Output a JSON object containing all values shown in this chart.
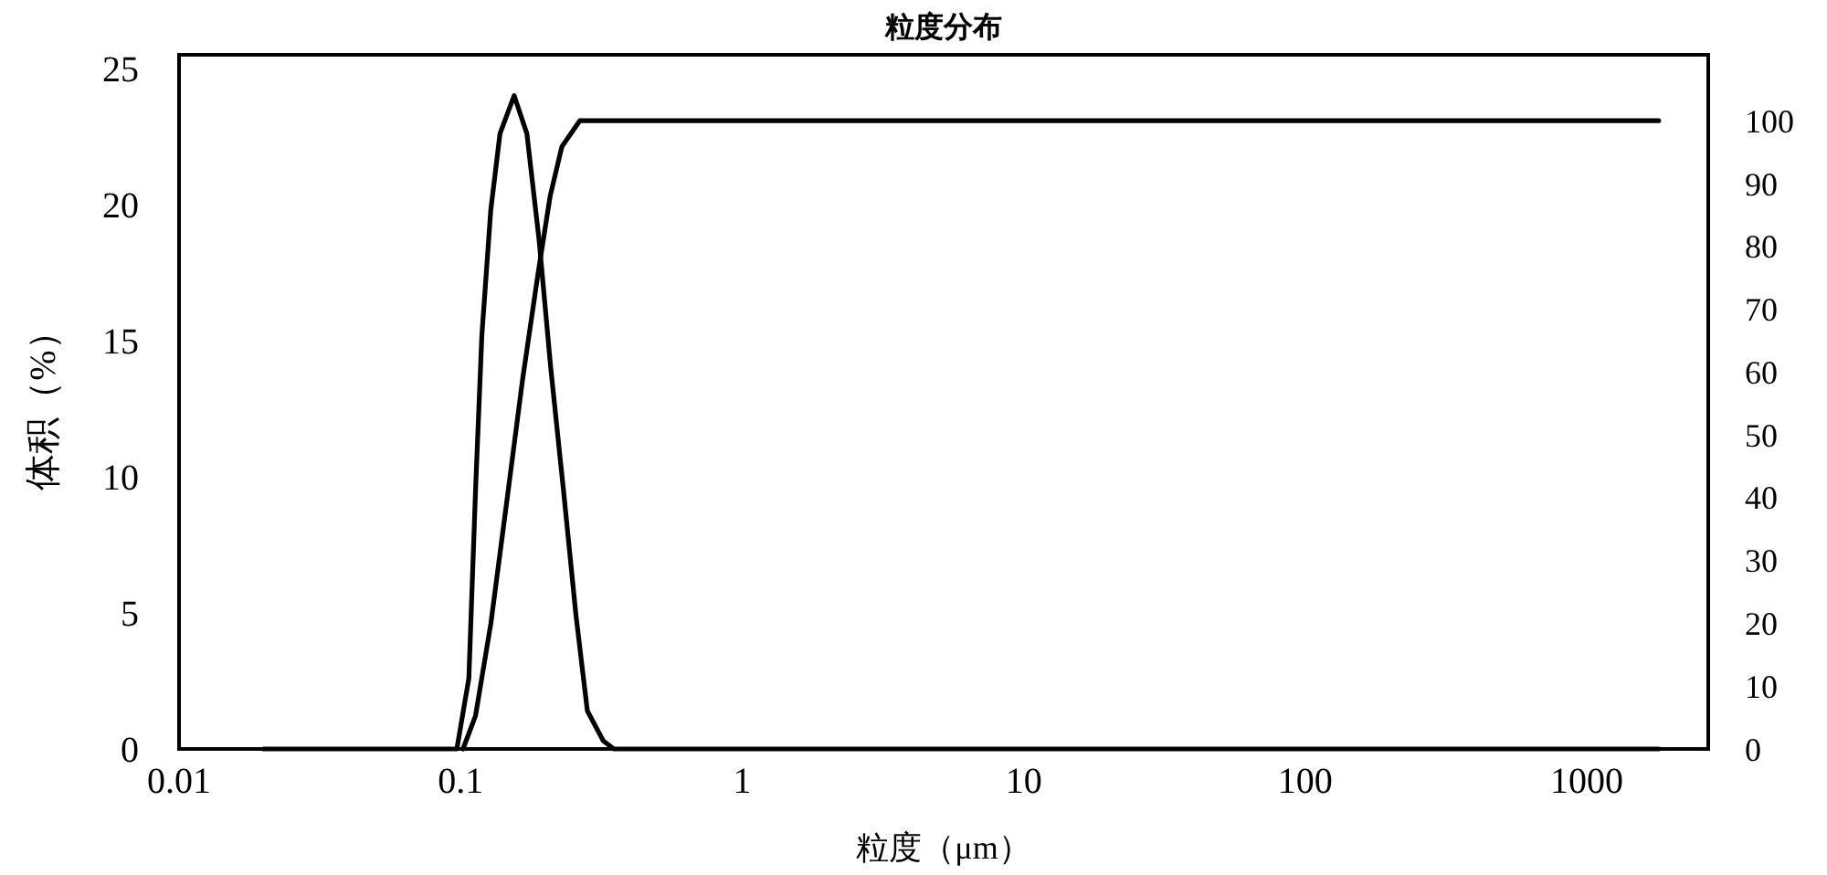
{
  "chart_data": {
    "type": "line",
    "title": "粒度分布",
    "xlabel": "粒度（μm）",
    "ylabel": "体积（%）",
    "xlim": [
      0.01,
      2700
    ],
    "xticks": [
      0.01,
      0.1,
      1,
      10,
      100,
      1000
    ],
    "log": "x",
    "ylim": [
      0,
      25.5
    ],
    "yticks": [
      0,
      5,
      10,
      15,
      20,
      25
    ],
    "y2lim": [
      0,
      110.5
    ],
    "y2ticks": [
      0,
      10,
      20,
      30,
      40,
      50,
      60,
      70,
      80,
      90,
      100
    ],
    "grid": false,
    "marker": "none",
    "line_style": "solid",
    "series": [
      {
        "color": "#000000",
        "x": [
          0.02,
          0.097,
          0.107,
          0.113,
          0.119,
          0.128,
          0.138,
          0.155,
          0.172,
          0.19,
          0.209,
          0.232,
          0.257,
          0.282,
          0.321,
          0.35,
          1800
        ],
        "values": [
          0,
          0,
          2.6,
          9.5,
          15.2,
          19.8,
          22.6,
          24,
          22.6,
          18.7,
          14,
          9.5,
          4.9,
          1.4,
          0.3,
          0,
          0
        ]
      },
      {
        "color": "#000000",
        "axis": "y2",
        "x": [
          0.102,
          0.113,
          0.128,
          0.146,
          0.166,
          0.188,
          0.208,
          0.229,
          0.265,
          1800
        ],
        "values": [
          0,
          5.3,
          19.9,
          39.5,
          58.8,
          75.4,
          88,
          95.9,
          100,
          100
        ]
      }
    ]
  }
}
